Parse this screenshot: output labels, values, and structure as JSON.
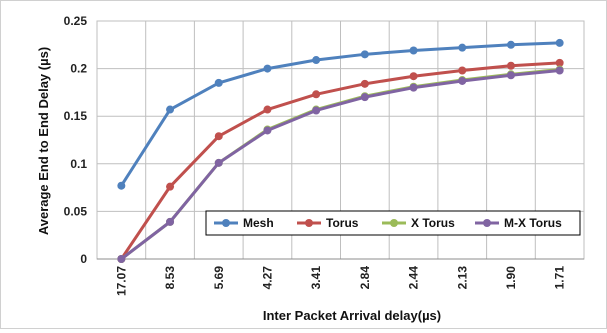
{
  "chart_data": {
    "type": "line",
    "xlabel": "Inter Packet Arrival delay(µs)",
    "ylabel": "Average End to End Delay (µs)",
    "categories": [
      "17.07",
      "8.53",
      "5.69",
      "4.27",
      "3.41",
      "2.84",
      "2.44",
      "2.13",
      "1.90",
      "1.71"
    ],
    "ylim": [
      0,
      0.25
    ],
    "yticks": [
      "0",
      "0.05",
      "0.1",
      "0.15",
      "0.2",
      "0.25"
    ],
    "grid": true,
    "legend_position": "bottom-right",
    "series": [
      {
        "name": "Mesh",
        "color": "#4f81bd",
        "values": [
          0.077,
          0.157,
          0.185,
          0.2,
          0.209,
          0.215,
          0.219,
          0.222,
          0.225,
          0.227
        ]
      },
      {
        "name": "Torus",
        "color": "#c0504d",
        "values": [
          0.0,
          0.076,
          0.129,
          0.157,
          0.173,
          0.184,
          0.192,
          0.198,
          0.203,
          0.206
        ]
      },
      {
        "name": "X Torus",
        "color": "#9bbb59",
        "values": [
          0.0,
          0.039,
          0.101,
          0.136,
          0.157,
          0.171,
          0.181,
          0.188,
          0.194,
          0.199
        ]
      },
      {
        "name": "M-X Torus",
        "color": "#8064a2",
        "values": [
          0.0,
          0.039,
          0.101,
          0.135,
          0.156,
          0.17,
          0.18,
          0.187,
          0.193,
          0.198
        ]
      }
    ]
  }
}
